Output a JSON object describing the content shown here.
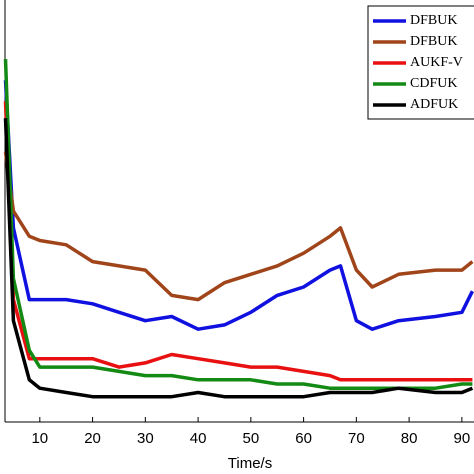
{
  "chart_data": {
    "type": "line",
    "xlabel": "Time/s",
    "x": [
      3.5,
      5,
      8,
      10,
      15,
      20,
      25,
      30,
      35,
      40,
      45,
      50,
      55,
      60,
      65,
      67,
      70,
      73,
      78,
      85,
      90,
      92
    ],
    "xlim": [
      3.4,
      92.3
    ],
    "xticks": [
      10,
      20,
      30,
      40,
      50,
      60,
      70,
      80,
      90
    ],
    "ylim": [
      0,
      100
    ],
    "legend": "upper right",
    "series": [
      {
        "name": "DFBUK",
        "color": "#1010e0",
        "values": [
          81,
          46,
          29,
          29,
          29,
          28,
          26,
          24,
          25,
          22,
          23,
          26,
          30,
          32,
          36,
          37,
          24,
          22,
          24,
          25,
          26,
          31
        ]
      },
      {
        "name": "DFBUK",
        "color": "#a0441a",
        "values": [
          64,
          50,
          44,
          43,
          42,
          38,
          37,
          36,
          30,
          29,
          33,
          35,
          37,
          40,
          44,
          46,
          36,
          32,
          35,
          36,
          36,
          38
        ]
      },
      {
        "name": "AUKF-V",
        "color": "#e81010",
        "values": [
          76,
          29,
          15,
          15,
          15,
          15,
          13,
          14,
          16,
          15,
          14,
          13,
          13,
          12,
          11,
          10,
          10,
          10,
          10,
          10,
          10,
          10
        ]
      },
      {
        "name": "CDFUK",
        "color": "#138a13",
        "values": [
          86,
          34,
          17,
          13,
          13,
          13,
          12,
          11,
          11,
          10,
          10,
          10,
          9,
          9,
          8,
          8,
          8,
          8,
          8,
          8,
          9,
          9
        ]
      },
      {
        "name": "ADFUK",
        "color": "#000000",
        "values": [
          72,
          24,
          10,
          8,
          7,
          6,
          6,
          6,
          6,
          7,
          6,
          6,
          6,
          6,
          7,
          7,
          7,
          7,
          8,
          7,
          7,
          8
        ]
      }
    ]
  }
}
